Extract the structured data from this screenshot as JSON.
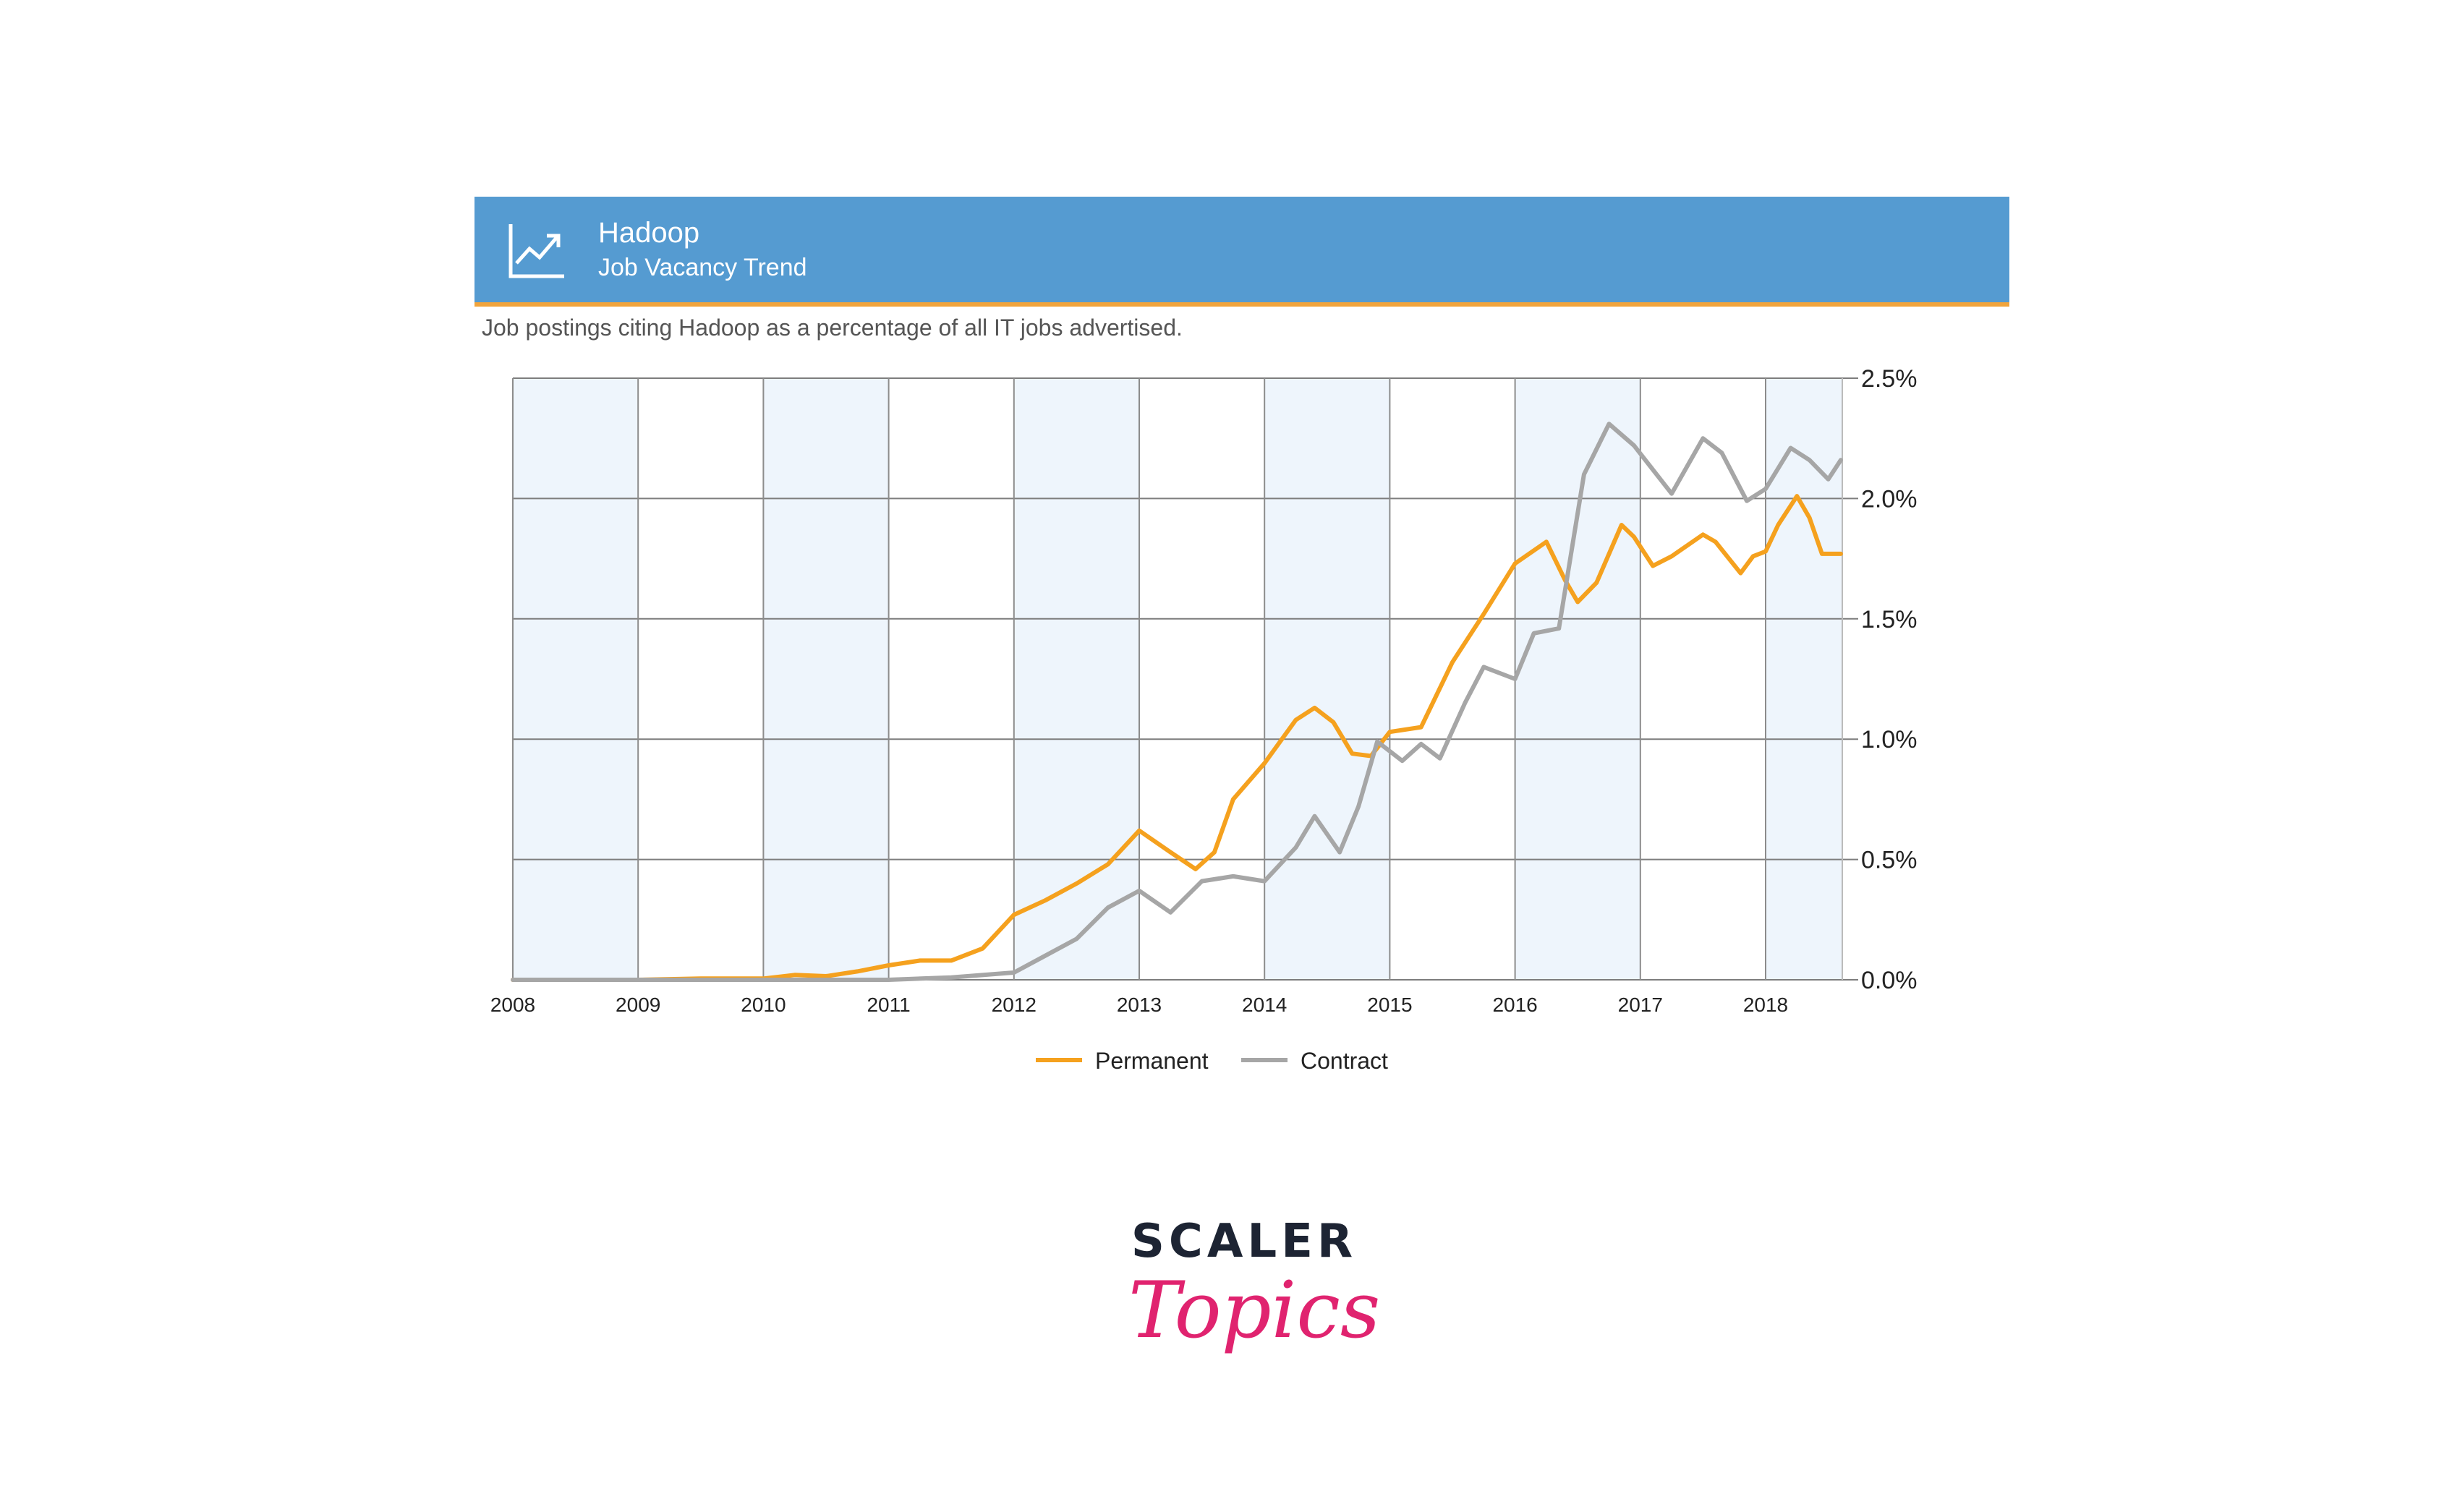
{
  "header": {
    "title": "Hadoop",
    "subtitle": "Job Vacancy Trend",
    "icon": "trend-chart-icon",
    "background": "#559bd1",
    "accent": "#f1a43c"
  },
  "description": "Job postings citing Hadoop as a percentage of all IT jobs advertised.",
  "brand": {
    "top": "SCALER",
    "bottom": "Topics",
    "top_color": "#1d2433",
    "bottom_color": "#e0236f"
  },
  "chart_data": {
    "type": "line",
    "xlim": [
      2008,
      2018.62
    ],
    "ylim": [
      0,
      2.5
    ],
    "x_ticks": [
      "2008",
      "2009",
      "2010",
      "2011",
      "2012",
      "2013",
      "2014",
      "2015",
      "2016",
      "2017",
      "2018"
    ],
    "y_ticks": [
      "0.0%",
      "0.5%",
      "1.0%",
      "1.5%",
      "2.0%",
      "2.5%"
    ],
    "grid": true,
    "y_axis_side": "right",
    "legend_position": "bottom-center",
    "series": [
      {
        "name": "Permanent",
        "color": "#f5a11e",
        "points": [
          [
            2008.0,
            0.0
          ],
          [
            2009.0,
            0.0
          ],
          [
            2009.5,
            0.005
          ],
          [
            2010.0,
            0.005
          ],
          [
            2010.25,
            0.02
          ],
          [
            2010.5,
            0.015
          ],
          [
            2010.75,
            0.035
          ],
          [
            2011.0,
            0.06
          ],
          [
            2011.25,
            0.08
          ],
          [
            2011.5,
            0.08
          ],
          [
            2011.75,
            0.13
          ],
          [
            2012.0,
            0.27
          ],
          [
            2012.25,
            0.33
          ],
          [
            2012.5,
            0.4
          ],
          [
            2012.75,
            0.48
          ],
          [
            2013.0,
            0.62
          ],
          [
            2013.25,
            0.53
          ],
          [
            2013.45,
            0.46
          ],
          [
            2013.6,
            0.53
          ],
          [
            2013.75,
            0.75
          ],
          [
            2014.0,
            0.9
          ],
          [
            2014.25,
            1.08
          ],
          [
            2014.4,
            1.13
          ],
          [
            2014.55,
            1.07
          ],
          [
            2014.7,
            0.94
          ],
          [
            2014.85,
            0.93
          ],
          [
            2015.0,
            1.03
          ],
          [
            2015.25,
            1.05
          ],
          [
            2015.5,
            1.32
          ],
          [
            2015.75,
            1.52
          ],
          [
            2016.0,
            1.73
          ],
          [
            2016.25,
            1.82
          ],
          [
            2016.4,
            1.66
          ],
          [
            2016.5,
            1.57
          ],
          [
            2016.65,
            1.65
          ],
          [
            2016.85,
            1.89
          ],
          [
            2016.95,
            1.84
          ],
          [
            2017.1,
            1.72
          ],
          [
            2017.25,
            1.76
          ],
          [
            2017.5,
            1.85
          ],
          [
            2017.6,
            1.82
          ],
          [
            2017.8,
            1.69
          ],
          [
            2017.9,
            1.76
          ],
          [
            2018.0,
            1.78
          ],
          [
            2018.1,
            1.89
          ],
          [
            2018.25,
            2.01
          ],
          [
            2018.35,
            1.92
          ],
          [
            2018.45,
            1.77
          ],
          [
            2018.6,
            1.77
          ]
        ]
      },
      {
        "name": "Contract",
        "color": "#a6a6a6",
        "points": [
          [
            2008.0,
            0.0
          ],
          [
            2011.0,
            0.0
          ],
          [
            2011.5,
            0.01
          ],
          [
            2012.0,
            0.03
          ],
          [
            2012.25,
            0.1
          ],
          [
            2012.5,
            0.17
          ],
          [
            2012.75,
            0.3
          ],
          [
            2013.0,
            0.37
          ],
          [
            2013.25,
            0.28
          ],
          [
            2013.5,
            0.41
          ],
          [
            2013.75,
            0.43
          ],
          [
            2014.0,
            0.41
          ],
          [
            2014.25,
            0.55
          ],
          [
            2014.4,
            0.68
          ],
          [
            2014.6,
            0.53
          ],
          [
            2014.75,
            0.72
          ],
          [
            2014.9,
            0.99
          ],
          [
            2015.1,
            0.91
          ],
          [
            2015.25,
            0.98
          ],
          [
            2015.4,
            0.92
          ],
          [
            2015.6,
            1.15
          ],
          [
            2015.75,
            1.3
          ],
          [
            2016.0,
            1.25
          ],
          [
            2016.15,
            1.44
          ],
          [
            2016.35,
            1.46
          ],
          [
            2016.55,
            2.1
          ],
          [
            2016.75,
            2.31
          ],
          [
            2016.95,
            2.22
          ],
          [
            2017.1,
            2.12
          ],
          [
            2017.25,
            2.02
          ],
          [
            2017.5,
            2.25
          ],
          [
            2017.65,
            2.19
          ],
          [
            2017.85,
            1.99
          ],
          [
            2018.0,
            2.04
          ],
          [
            2018.2,
            2.21
          ],
          [
            2018.35,
            2.16
          ],
          [
            2018.5,
            2.08
          ],
          [
            2018.6,
            2.16
          ]
        ]
      }
    ]
  }
}
